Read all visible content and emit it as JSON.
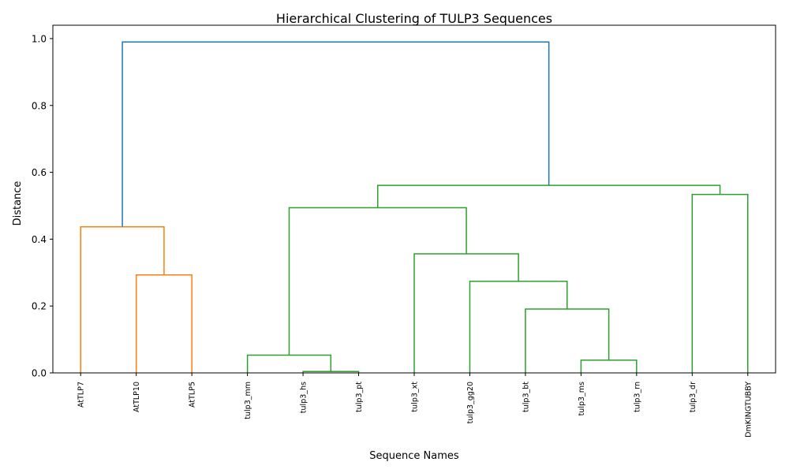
{
  "chart_data": {
    "type": "dendrogram",
    "title": "Hierarchical Clustering of TULP3 Sequences",
    "xlabel": "Sequence Names",
    "ylabel": "Distance",
    "ylim": [
      0,
      1.04
    ],
    "yticks": [
      "0.0",
      "0.2",
      "0.4",
      "0.6",
      "0.8",
      "1.0"
    ],
    "leaves": [
      "AtTLP7",
      "AtTLP10",
      "AtTLP5",
      "tulp3_mm",
      "tulp3_hs",
      "tulp3_pt",
      "tulp3_xt",
      "tulp3_gg20",
      "tulp3_bt",
      "tulp3_ms",
      "tulp3_rn",
      "tulp3_dr",
      "DmKINGTUBBY"
    ],
    "colors": {
      "cluster_a": "#ff7f0e",
      "cluster_b": "#2ca02c",
      "root": "#1f77b4"
    },
    "merges": [
      {
        "id": "m1",
        "left": "AtTLP10",
        "right": "AtTLP5",
        "height": 0.293,
        "color": "cluster_a"
      },
      {
        "id": "m2",
        "left": "AtTLP7",
        "right": "m1",
        "height": 0.437,
        "color": "cluster_a"
      },
      {
        "id": "m3",
        "left": "tulp3_hs",
        "right": "tulp3_pt",
        "height": 0.004,
        "color": "cluster_b"
      },
      {
        "id": "m4",
        "left": "tulp3_mm",
        "right": "m3",
        "height": 0.053,
        "color": "cluster_b"
      },
      {
        "id": "m5",
        "left": "tulp3_ms",
        "right": "tulp3_rn",
        "height": 0.038,
        "color": "cluster_b"
      },
      {
        "id": "m6",
        "left": "tulp3_bt",
        "right": "m5",
        "height": 0.191,
        "color": "cluster_b"
      },
      {
        "id": "m7",
        "left": "tulp3_gg20",
        "right": "m6",
        "height": 0.274,
        "color": "cluster_b"
      },
      {
        "id": "m8",
        "left": "tulp3_xt",
        "right": "m7",
        "height": 0.356,
        "color": "cluster_b"
      },
      {
        "id": "m9",
        "left": "m4",
        "right": "m8",
        "height": 0.494,
        "color": "cluster_b"
      },
      {
        "id": "m10",
        "left": "tulp3_dr",
        "right": "DmKINGTUBBY",
        "height": 0.534,
        "color": "cluster_b"
      },
      {
        "id": "m11",
        "left": "m9",
        "right": "m10",
        "height": 0.561,
        "color": "cluster_b"
      },
      {
        "id": "m12",
        "left": "m2",
        "right": "m11",
        "height": 0.99,
        "color": "root"
      }
    ]
  }
}
